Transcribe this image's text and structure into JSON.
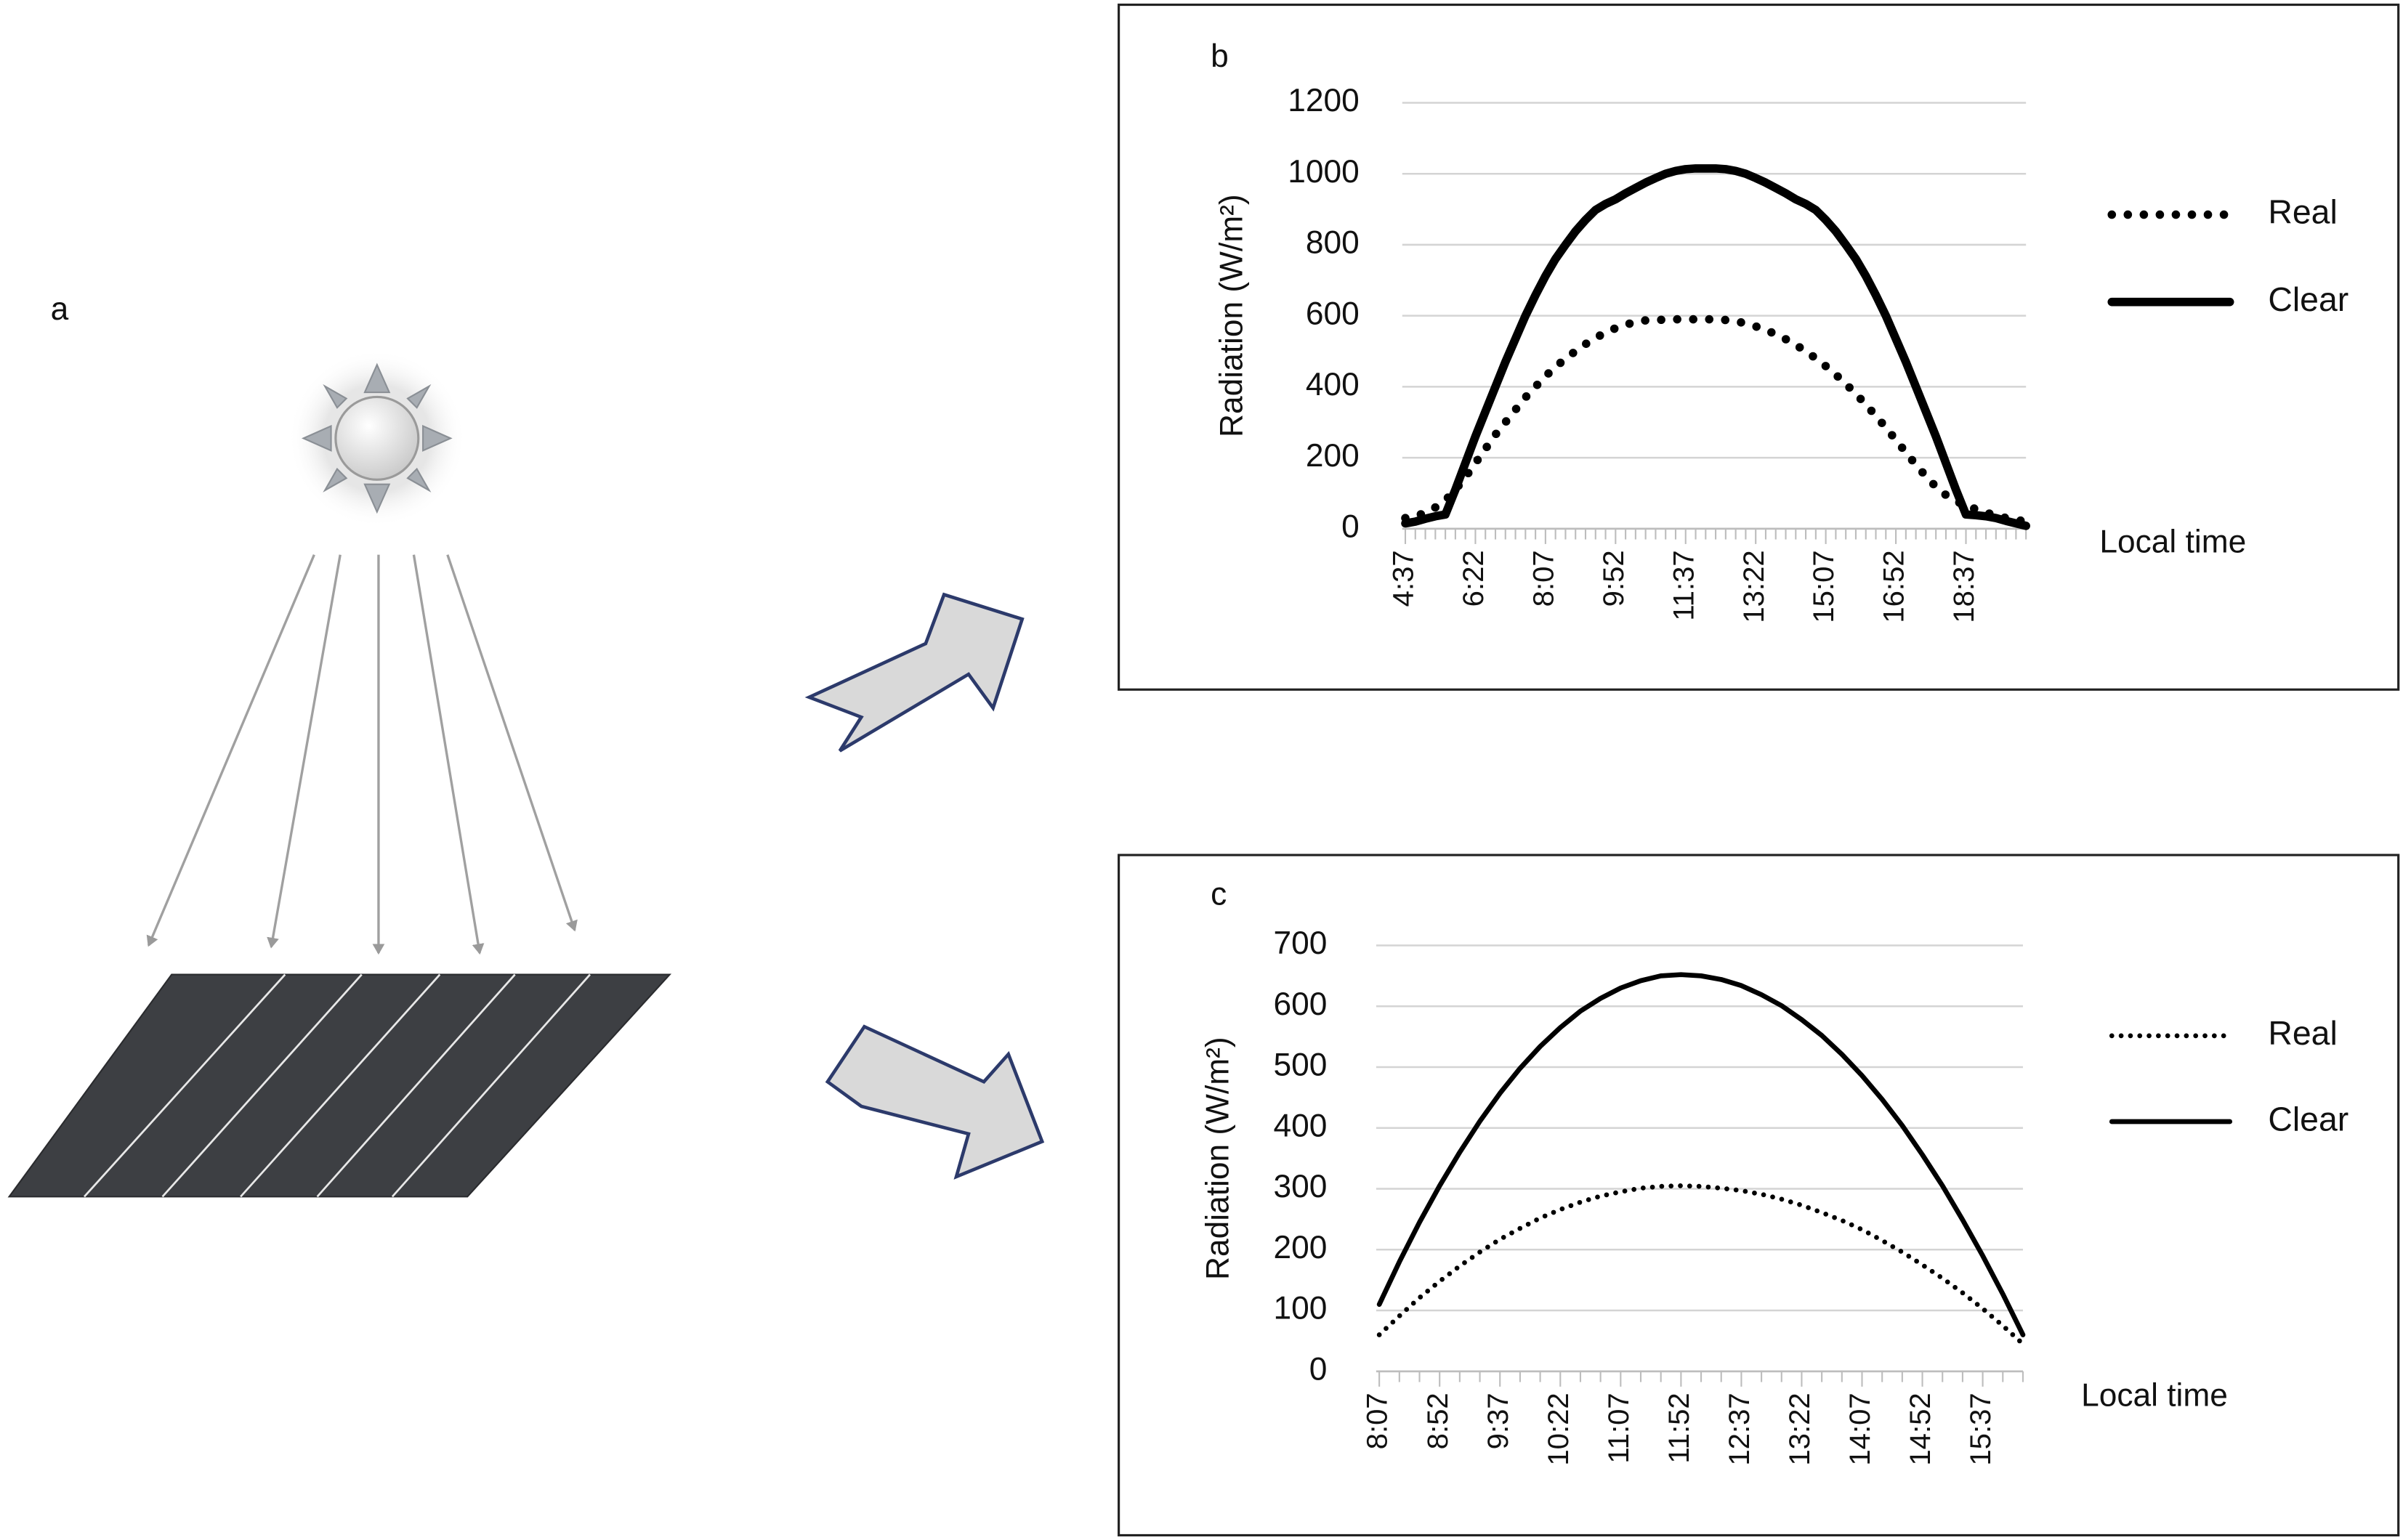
{
  "panel_a": {
    "label": "a"
  },
  "chart_data": [
    {
      "type": "line",
      "label": "b",
      "y_label": "Radiation (W/m²)",
      "x_label": "Local time",
      "categories": [
        "4:37",
        null,
        null,
        null,
        null,
        null,
        null,
        "6:22",
        null,
        null,
        null,
        null,
        null,
        null,
        "8:07",
        null,
        null,
        null,
        null,
        null,
        null,
        "9:52",
        null,
        null,
        null,
        null,
        null,
        null,
        "11:37",
        null,
        null,
        null,
        null,
        null,
        null,
        "13:22",
        null,
        null,
        null,
        null,
        null,
        null,
        "15:07",
        null,
        null,
        null,
        null,
        null,
        null,
        "16:52",
        null,
        null,
        null,
        null,
        null,
        null,
        "18:37",
        null,
        null,
        null,
        null,
        null,
        null
      ],
      "series": [
        {
          "name": "Real",
          "color": "#000000",
          "style": "dotted",
          "values": [
            30,
            35,
            45,
            60,
            80,
            110,
            145,
            185,
            225,
            265,
            300,
            335,
            370,
            400,
            430,
            455,
            480,
            500,
            520,
            538,
            552,
            565,
            575,
            582,
            587,
            588,
            589,
            590,
            590,
            590,
            590,
            590,
            588,
            585,
            578,
            570,
            560,
            548,
            534,
            518,
            500,
            480,
            458,
            434,
            408,
            380,
            350,
            318,
            285,
            250,
            215,
            180,
            148,
            118,
            95,
            78,
            65,
            55,
            45,
            38,
            30,
            25,
            20
          ]
        },
        {
          "name": "Clear",
          "color": "#000000",
          "style": "solid",
          "values": [
            15,
            20,
            28,
            35,
            40,
            110,
            185,
            260,
            330,
            400,
            470,
            535,
            600,
            658,
            712,
            760,
            800,
            838,
            870,
            898,
            915,
            928,
            945,
            960,
            975,
            988,
            1000,
            1008,
            1013,
            1015,
            1015,
            1015,
            1013,
            1008,
            1000,
            988,
            975,
            960,
            945,
            928,
            915,
            898,
            870,
            838,
            800,
            760,
            712,
            658,
            600,
            535,
            470,
            400,
            330,
            260,
            185,
            110,
            40,
            38,
            35,
            30,
            22,
            15,
            8
          ]
        }
      ],
      "ylim": [
        0,
        1200
      ],
      "yticks": [
        0,
        200,
        400,
        600,
        800,
        1000,
        1200
      ],
      "grid": true
    },
    {
      "type": "line",
      "label": "c",
      "y_label": "Radiation (W/m²)",
      "x_label": "Local time",
      "categories": [
        "8:07",
        null,
        null,
        "8:52",
        null,
        null,
        "9:37",
        null,
        null,
        "10:22",
        null,
        null,
        "11:07",
        null,
        null,
        "11:52",
        null,
        null,
        "12:37",
        null,
        null,
        "13:22",
        null,
        null,
        "14:07",
        null,
        null,
        "14:52",
        null,
        null,
        "15:37",
        null,
        null
      ],
      "series": [
        {
          "name": "Real",
          "color": "#000000",
          "style": "dotted",
          "values": [
            60,
            91,
            121,
            148,
            173,
            196,
            217,
            235,
            252,
            266,
            278,
            288,
            295,
            301,
            304,
            305,
            304,
            301,
            297,
            291,
            283,
            273,
            261,
            248,
            233,
            215,
            196,
            175,
            153,
            129,
            103,
            75,
            45
          ]
        },
        {
          "name": "Clear",
          "color": "#000000",
          "style": "solid",
          "values": [
            110,
            180,
            245,
            305,
            360,
            411,
            457,
            498,
            534,
            565,
            592,
            613,
            630,
            642,
            650,
            652,
            650,
            644,
            634,
            619,
            601,
            578,
            552,
            521,
            486,
            447,
            404,
            356,
            305,
            249,
            190,
            127,
            60
          ]
        }
      ],
      "ylim": [
        0,
        700
      ],
      "yticks": [
        0,
        100,
        200,
        300,
        400,
        500,
        600,
        700
      ],
      "grid": true
    }
  ]
}
